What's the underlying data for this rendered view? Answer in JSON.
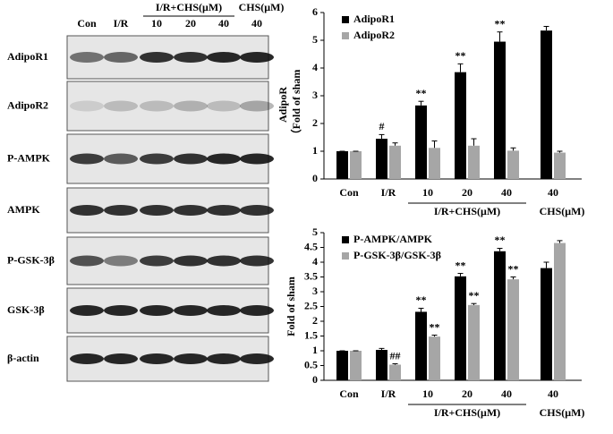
{
  "blot": {
    "header": {
      "lanes": [
        "Con",
        "I/R",
        "10",
        "20",
        "40",
        "40"
      ],
      "group_a": "I/R+CHS(μM)",
      "group_b": "CHS(μM)"
    },
    "rows": [
      "AdipoR1",
      "AdipoR2",
      "P-AMPK",
      "AMPK",
      "P-GSK-3β",
      "GSK-3β",
      "β-actin"
    ]
  },
  "chart_data": [
    {
      "type": "bar",
      "ylabel": [
        "AdipoR",
        "（Fold of sham"
      ],
      "categories": [
        "Con",
        "I/R",
        "10",
        "20",
        "40",
        "40"
      ],
      "groups": [
        "I/R+CHS(μM)",
        "CHS(μM)"
      ],
      "ylim": [
        0,
        6
      ],
      "yticks": [
        0,
        1,
        2,
        3,
        4,
        5,
        6
      ],
      "legend": "upper left",
      "series": [
        {
          "name": "AdipoR1",
          "color": "#000000",
          "values": [
            1,
            1.45,
            2.65,
            3.85,
            4.95,
            5.35
          ],
          "errors": [
            0,
            0.15,
            0.15,
            0.3,
            0.35,
            0.15
          ],
          "annotations": [
            null,
            "#",
            "**",
            "**",
            "**",
            null
          ]
        },
        {
          "name": "AdipoR2",
          "color": "#a6a6a6",
          "values": [
            1,
            1.2,
            1.12,
            1.2,
            1.02,
            0.95
          ],
          "errors": [
            0,
            0.1,
            0.25,
            0.25,
            0.1,
            0.05
          ],
          "annotations": [
            null,
            null,
            null,
            null,
            null,
            null
          ]
        }
      ]
    },
    {
      "type": "bar",
      "ylabel": [
        "Fold of sham"
      ],
      "categories": [
        "Con",
        "I/R",
        "10",
        "20",
        "40",
        "40"
      ],
      "groups": [
        "I/R+CHS(μM)",
        "CHS(μM)"
      ],
      "ylim": [
        0,
        5
      ],
      "yticks": [
        0,
        0.5,
        1,
        1.5,
        2,
        2.5,
        3,
        3.5,
        4,
        4.5,
        5
      ],
      "legend": "upper left",
      "series": [
        {
          "name": "P-AMPK/AMPK",
          "color": "#000000",
          "values": [
            1,
            1.03,
            2.32,
            3.52,
            4.37,
            3.8
          ],
          "errors": [
            0,
            0.05,
            0.12,
            0.1,
            0.1,
            0.2
          ],
          "annotations": [
            null,
            null,
            "**",
            "**",
            "**",
            null
          ]
        },
        {
          "name": "P-GSK-3β/GSK-3β",
          "color": "#a6a6a6",
          "values": [
            1,
            0.53,
            1.48,
            2.55,
            3.42,
            4.65
          ],
          "errors": [
            0,
            0.03,
            0.05,
            0.05,
            0.08,
            0.08
          ],
          "annotations": [
            null,
            "##",
            "**",
            "**",
            "**",
            null
          ]
        }
      ]
    }
  ]
}
